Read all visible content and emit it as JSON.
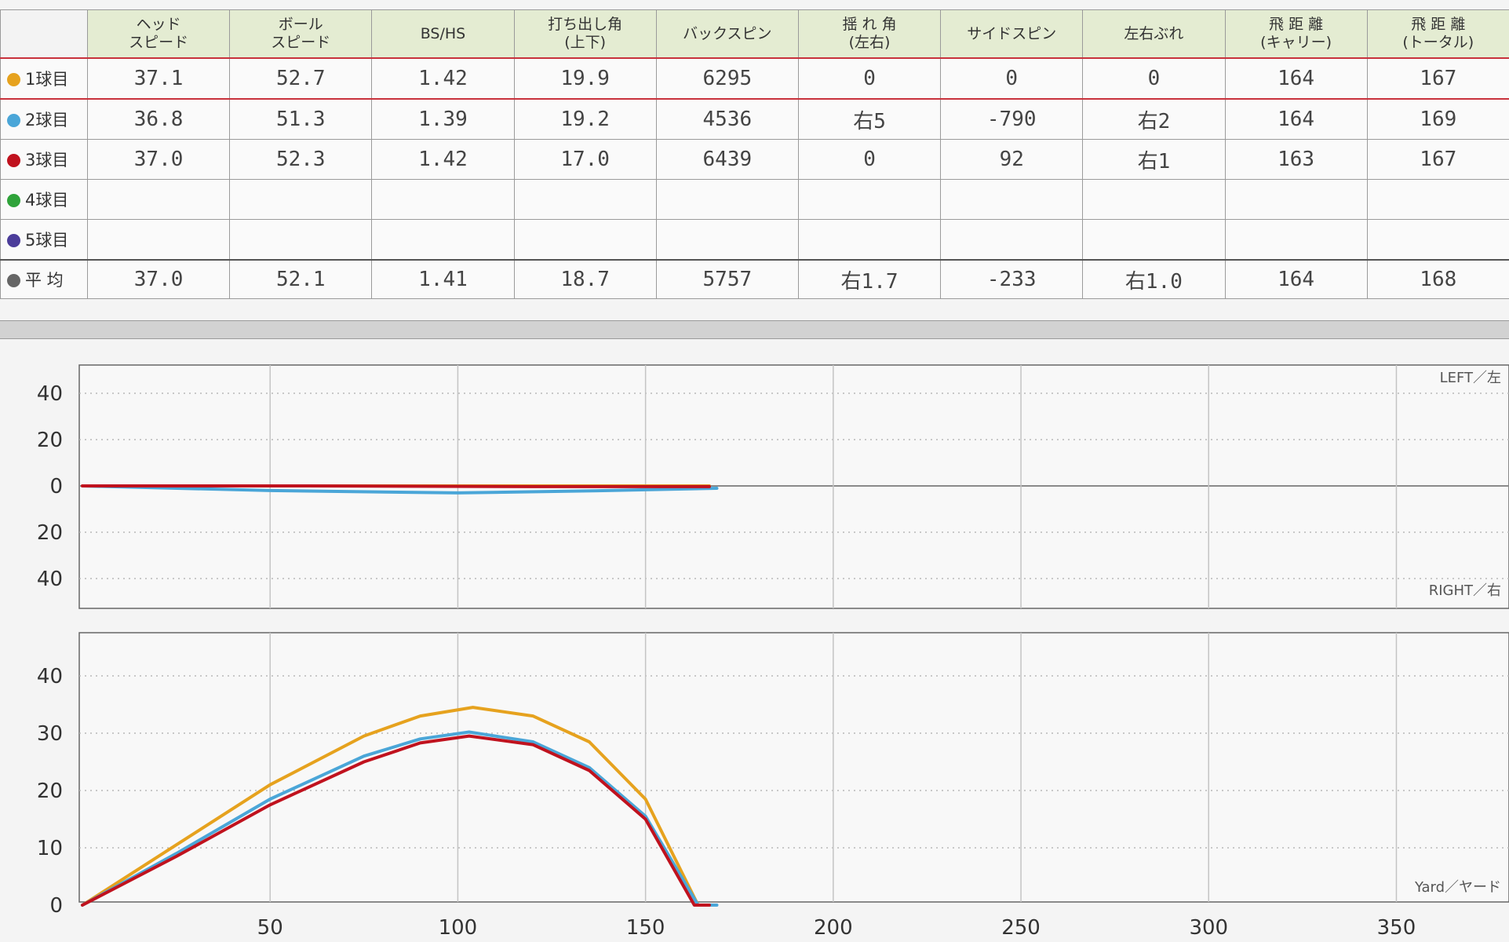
{
  "table": {
    "headers": [
      [
        "ヘッド",
        "スピード"
      ],
      [
        "ボール",
        "スピード"
      ],
      [
        "BS/HS"
      ],
      [
        "打ち出し角",
        "(上下)"
      ],
      [
        "バックスピン"
      ],
      [
        "揺 れ 角",
        "(左右)"
      ],
      [
        "サイドスピン"
      ],
      [
        "左右ぶれ"
      ],
      [
        "飛 距 離",
        "(キャリー)"
      ],
      [
        "飛 距 離",
        "(トータル)"
      ]
    ],
    "rows": [
      {
        "label": "1球目",
        "color": "#e6a21e",
        "values": [
          "37.1",
          "52.7",
          "1.42",
          "19.9",
          "6295",
          "0",
          "0",
          "0",
          "164",
          "167"
        ]
      },
      {
        "label": "2球目",
        "color": "#4aa6d8",
        "values": [
          "36.8",
          "51.3",
          "1.39",
          "19.2",
          "4536",
          "右5",
          "-790",
          "右2",
          "164",
          "169"
        ]
      },
      {
        "label": "3球目",
        "color": "#c0121e",
        "values": [
          "37.0",
          "52.3",
          "1.42",
          "17.0",
          "6439",
          "0",
          "92",
          "右1",
          "163",
          "167"
        ]
      },
      {
        "label": "4球目",
        "color": "#2fa33a",
        "values": [
          "",
          "",
          "",
          "",
          "",
          "",
          "",
          "",
          "",
          ""
        ]
      },
      {
        "label": "5球目",
        "color": "#4b3c9a",
        "values": [
          "",
          "",
          "",
          "",
          "",
          "",
          "",
          "",
          "",
          ""
        ]
      },
      {
        "label": "平 均",
        "color": "#666666",
        "values": [
          "37.0",
          "52.1",
          "1.41",
          "18.7",
          "5757",
          "右1.7",
          "-233",
          "右1.0",
          "164",
          "168"
        ]
      }
    ]
  },
  "chart_data": [
    {
      "type": "line",
      "title": "",
      "x_range": [
        0,
        380
      ],
      "y_range": [
        -55,
        55
      ],
      "y_ticks": [
        40,
        20,
        0,
        -20,
        -40
      ],
      "y_tick_labels": [
        "40",
        "20",
        "0",
        "20",
        "40"
      ],
      "x_gridlines": [
        50,
        100,
        150,
        200,
        250,
        300,
        350
      ],
      "top_right_label": "LEFT／左",
      "bottom_right_label": "RIGHT／右",
      "series": [
        {
          "color": "#4aa6d8",
          "x": [
            0,
            50,
            100,
            140,
            169
          ],
          "y": [
            0,
            -2,
            -3,
            -2,
            -1
          ]
        },
        {
          "color": "#e6a21e",
          "x": [
            0,
            167
          ],
          "y": [
            0,
            0
          ]
        },
        {
          "color": "#c0121e",
          "x": [
            0,
            60,
            120,
            167
          ],
          "y": [
            0,
            0,
            -0.3,
            -0.3
          ]
        }
      ]
    },
    {
      "type": "line",
      "title": "",
      "x_range": [
        0,
        380
      ],
      "y_range": [
        0,
        42
      ],
      "y_ticks": [
        0,
        10,
        20,
        30,
        40
      ],
      "y_tick_labels": [
        "0",
        "10",
        "20",
        "30",
        "40"
      ],
      "x_ticks": [
        50,
        100,
        150,
        200,
        250,
        300,
        350
      ],
      "x_tick_labels": [
        "50",
        "100",
        "150",
        "200",
        "250",
        "300",
        "350"
      ],
      "x_unit_label": "Yard／ヤード",
      "series": [
        {
          "color": "#e6a21e",
          "x": [
            0,
            25,
            50,
            75,
            90,
            104,
            120,
            135,
            150,
            164,
            167
          ],
          "y": [
            0,
            10.5,
            21,
            29.5,
            33,
            34.5,
            33,
            28.5,
            18.5,
            0,
            0
          ]
        },
        {
          "color": "#4aa6d8",
          "x": [
            0,
            25,
            50,
            75,
            90,
            103,
            120,
            135,
            150,
            164,
            169
          ],
          "y": [
            0,
            9,
            18.5,
            26,
            29,
            30.2,
            28.5,
            24,
            15.5,
            0,
            0
          ]
        },
        {
          "color": "#c0121e",
          "x": [
            0,
            25,
            50,
            75,
            90,
            103,
            120,
            135,
            150,
            163,
            167
          ],
          "y": [
            0,
            8.5,
            17.5,
            25,
            28.3,
            29.5,
            28,
            23.5,
            15,
            0,
            0
          ]
        }
      ]
    }
  ]
}
